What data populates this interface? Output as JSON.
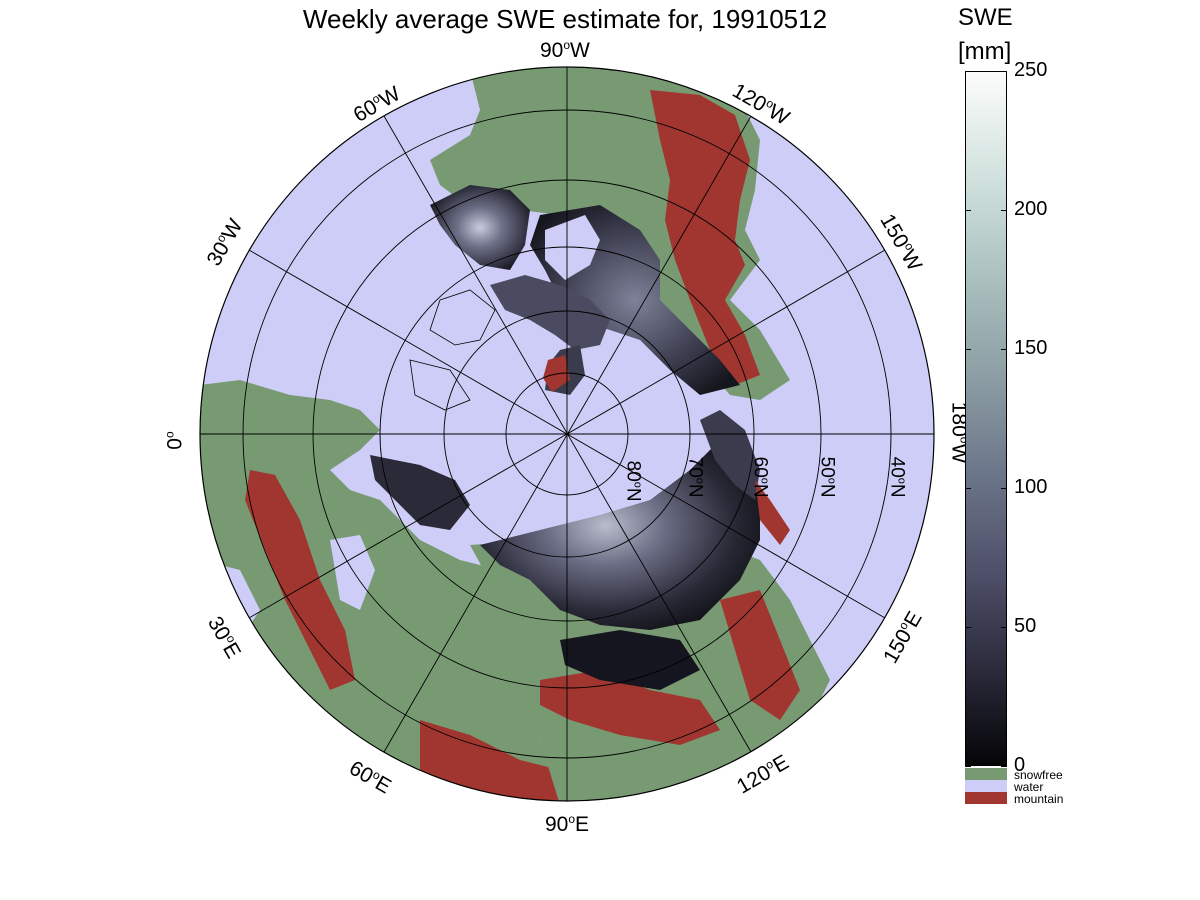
{
  "title": "Weekly average SWE estimate for, 19910512",
  "colorbar": {
    "title": "SWE",
    "unit": "[mm]",
    "ticks": [
      "0",
      "50",
      "100",
      "150",
      "200",
      "250"
    ],
    "range": [
      0,
      250
    ],
    "categories": [
      {
        "label": "snowfree",
        "color": "#789a73"
      },
      {
        "label": "water",
        "color": "#cdcdf7"
      },
      {
        "label": "mountain",
        "color": "#a0362f"
      }
    ]
  },
  "map": {
    "projection": "north polar stereographic",
    "longitude_labels": [
      {
        "deg": "90",
        "dir": "W"
      },
      {
        "deg": "120",
        "dir": "W"
      },
      {
        "deg": "60",
        "dir": "W"
      },
      {
        "deg": "30",
        "dir": "W"
      },
      {
        "deg": "150",
        "dir": "W"
      },
      {
        "deg": "0",
        "dir": ""
      },
      {
        "deg": "180",
        "dir": "W"
      },
      {
        "deg": "30",
        "dir": "E"
      },
      {
        "deg": "150",
        "dir": "E"
      },
      {
        "deg": "60",
        "dir": "E"
      },
      {
        "deg": "120",
        "dir": "E"
      },
      {
        "deg": "90",
        "dir": "E"
      }
    ],
    "latitude_labels": [
      {
        "deg": "80",
        "dir": "N"
      },
      {
        "deg": "70",
        "dir": "N"
      },
      {
        "deg": "60",
        "dir": "N"
      },
      {
        "deg": "50",
        "dir": "N"
      },
      {
        "deg": "40",
        "dir": "N"
      }
    ],
    "colors": {
      "water": "#cdcdf7",
      "snowfree": "#789a73",
      "mountain": "#a0362f",
      "snow_dark": "#15151f",
      "snow_mid": "#4a4b60",
      "snow_light": "#9aa2b4"
    }
  }
}
